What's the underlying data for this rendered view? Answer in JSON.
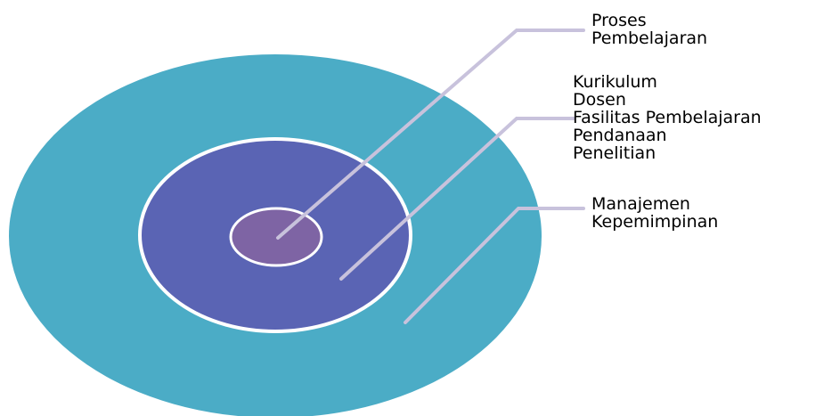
{
  "colors": {
    "outer_ring": "#4bacc6",
    "middle_ring": "#5a64b4",
    "inner_core": "#7e64a4",
    "separator": "#ffffff",
    "leader_line": "#c8c2dc",
    "text": "#000000"
  },
  "layers": [
    {
      "id": "inner",
      "lines": [
        "Proses",
        "Pembelajaran"
      ]
    },
    {
      "id": "middle",
      "lines": [
        "Kurikulum",
        "Dosen",
        "Fasilitas Pembelajaran",
        "Pendanaan",
        "Penelitian"
      ]
    },
    {
      "id": "outer",
      "lines": [
        "Manajemen",
        "Kepemimpinan"
      ]
    }
  ]
}
